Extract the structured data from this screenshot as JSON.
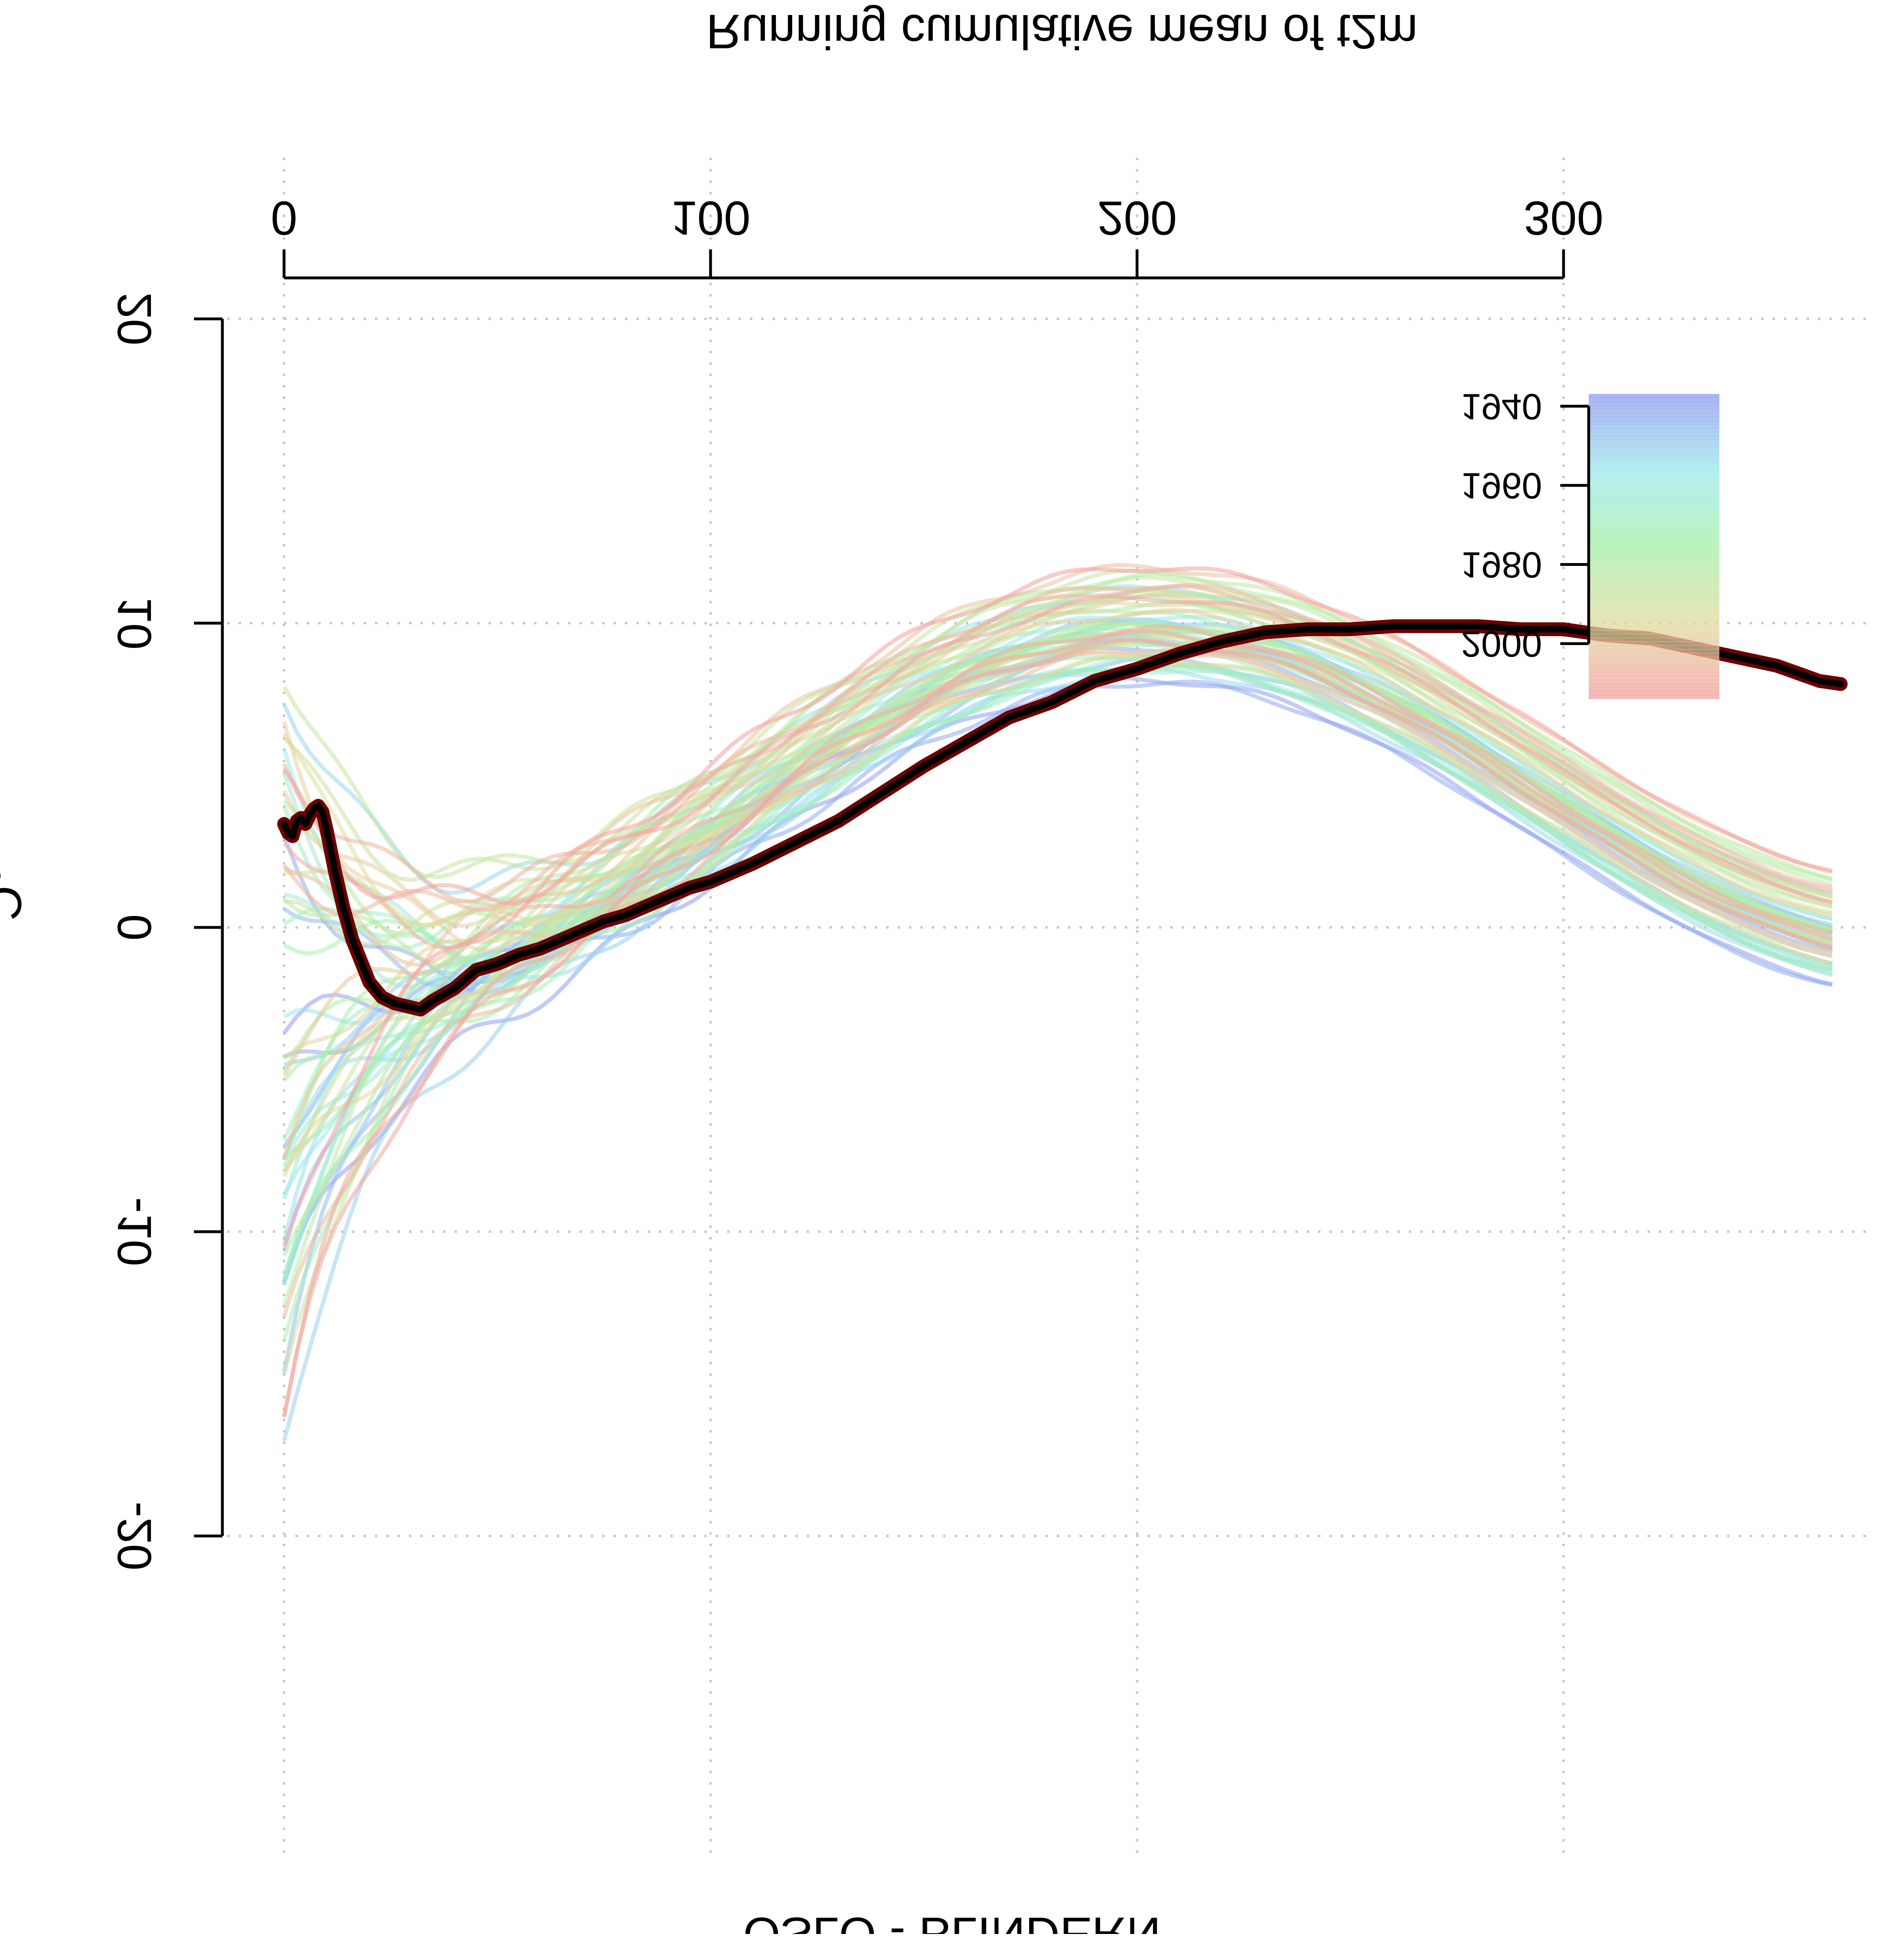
{
  "chart_data": {
    "type": "line",
    "title": "OSLO - BLINDERN",
    "xlabel": "Running cumulative mean of t2m",
    "ylabel": "°C",
    "xlim": [
      0,
      365
    ],
    "ylim": [
      -20,
      20
    ],
    "y_reversed": true,
    "image_flipped_vertically": true,
    "x_ticks": [
      "0",
      "100",
      "200",
      "300"
    ],
    "x_tick_values": [
      0,
      100,
      200,
      300
    ],
    "y_ticks": [
      "-20",
      "-10",
      "0",
      "10",
      "20"
    ],
    "y_tick_values": [
      -20,
      -10,
      0,
      10,
      20
    ],
    "grid": true,
    "grid_style": "dotted",
    "legend": {
      "type": "colorbar",
      "placement": "top-right",
      "labels": [
        "1940",
        "1960",
        "1980",
        "2000"
      ],
      "label_values": [
        1940,
        1960,
        1980,
        2000
      ],
      "range": [
        1937,
        2014
      ],
      "colors": [
        "#8f9cf0",
        "#9ee8ee",
        "#a7f0a7",
        "#e0dca0",
        "#f4a0a0"
      ]
    },
    "series": [
      {
        "role": "highlighted",
        "color": "#000000",
        "outline": "#6e0000",
        "x": [
          0,
          1,
          2,
          3,
          4,
          5,
          6,
          7,
          8,
          9,
          10,
          12,
          14,
          16,
          18,
          20,
          23,
          26,
          29,
          32,
          35,
          40,
          45,
          50,
          55,
          60,
          65,
          70,
          75,
          80,
          85,
          90,
          95,
          100,
          110,
          120,
          130,
          140,
          150,
          160,
          170,
          180,
          190,
          200,
          210,
          220,
          230,
          240,
          250,
          260,
          270,
          280,
          290,
          300,
          310,
          320,
          330,
          340,
          350,
          360,
          365
        ],
        "y": [
          3.4,
          3.1,
          3.0,
          3.5,
          3.6,
          3.4,
          3.7,
          3.9,
          4.0,
          3.8,
          3.2,
          1.8,
          0.6,
          -0.4,
          -1.1,
          -1.8,
          -2.3,
          -2.5,
          -2.6,
          -2.7,
          -2.4,
          -2.0,
          -1.4,
          -1.2,
          -0.9,
          -0.7,
          -0.4,
          -0.1,
          0.2,
          0.4,
          0.7,
          1.0,
          1.3,
          1.5,
          2.1,
          2.8,
          3.5,
          4.4,
          5.3,
          6.1,
          6.9,
          7.4,
          8.1,
          8.5,
          9.0,
          9.4,
          9.7,
          9.8,
          9.8,
          9.9,
          9.9,
          9.9,
          9.8,
          9.8,
          9.6,
          9.5,
          9.2,
          8.9,
          8.6,
          8.1,
          8.0
        ]
      }
    ]
  }
}
